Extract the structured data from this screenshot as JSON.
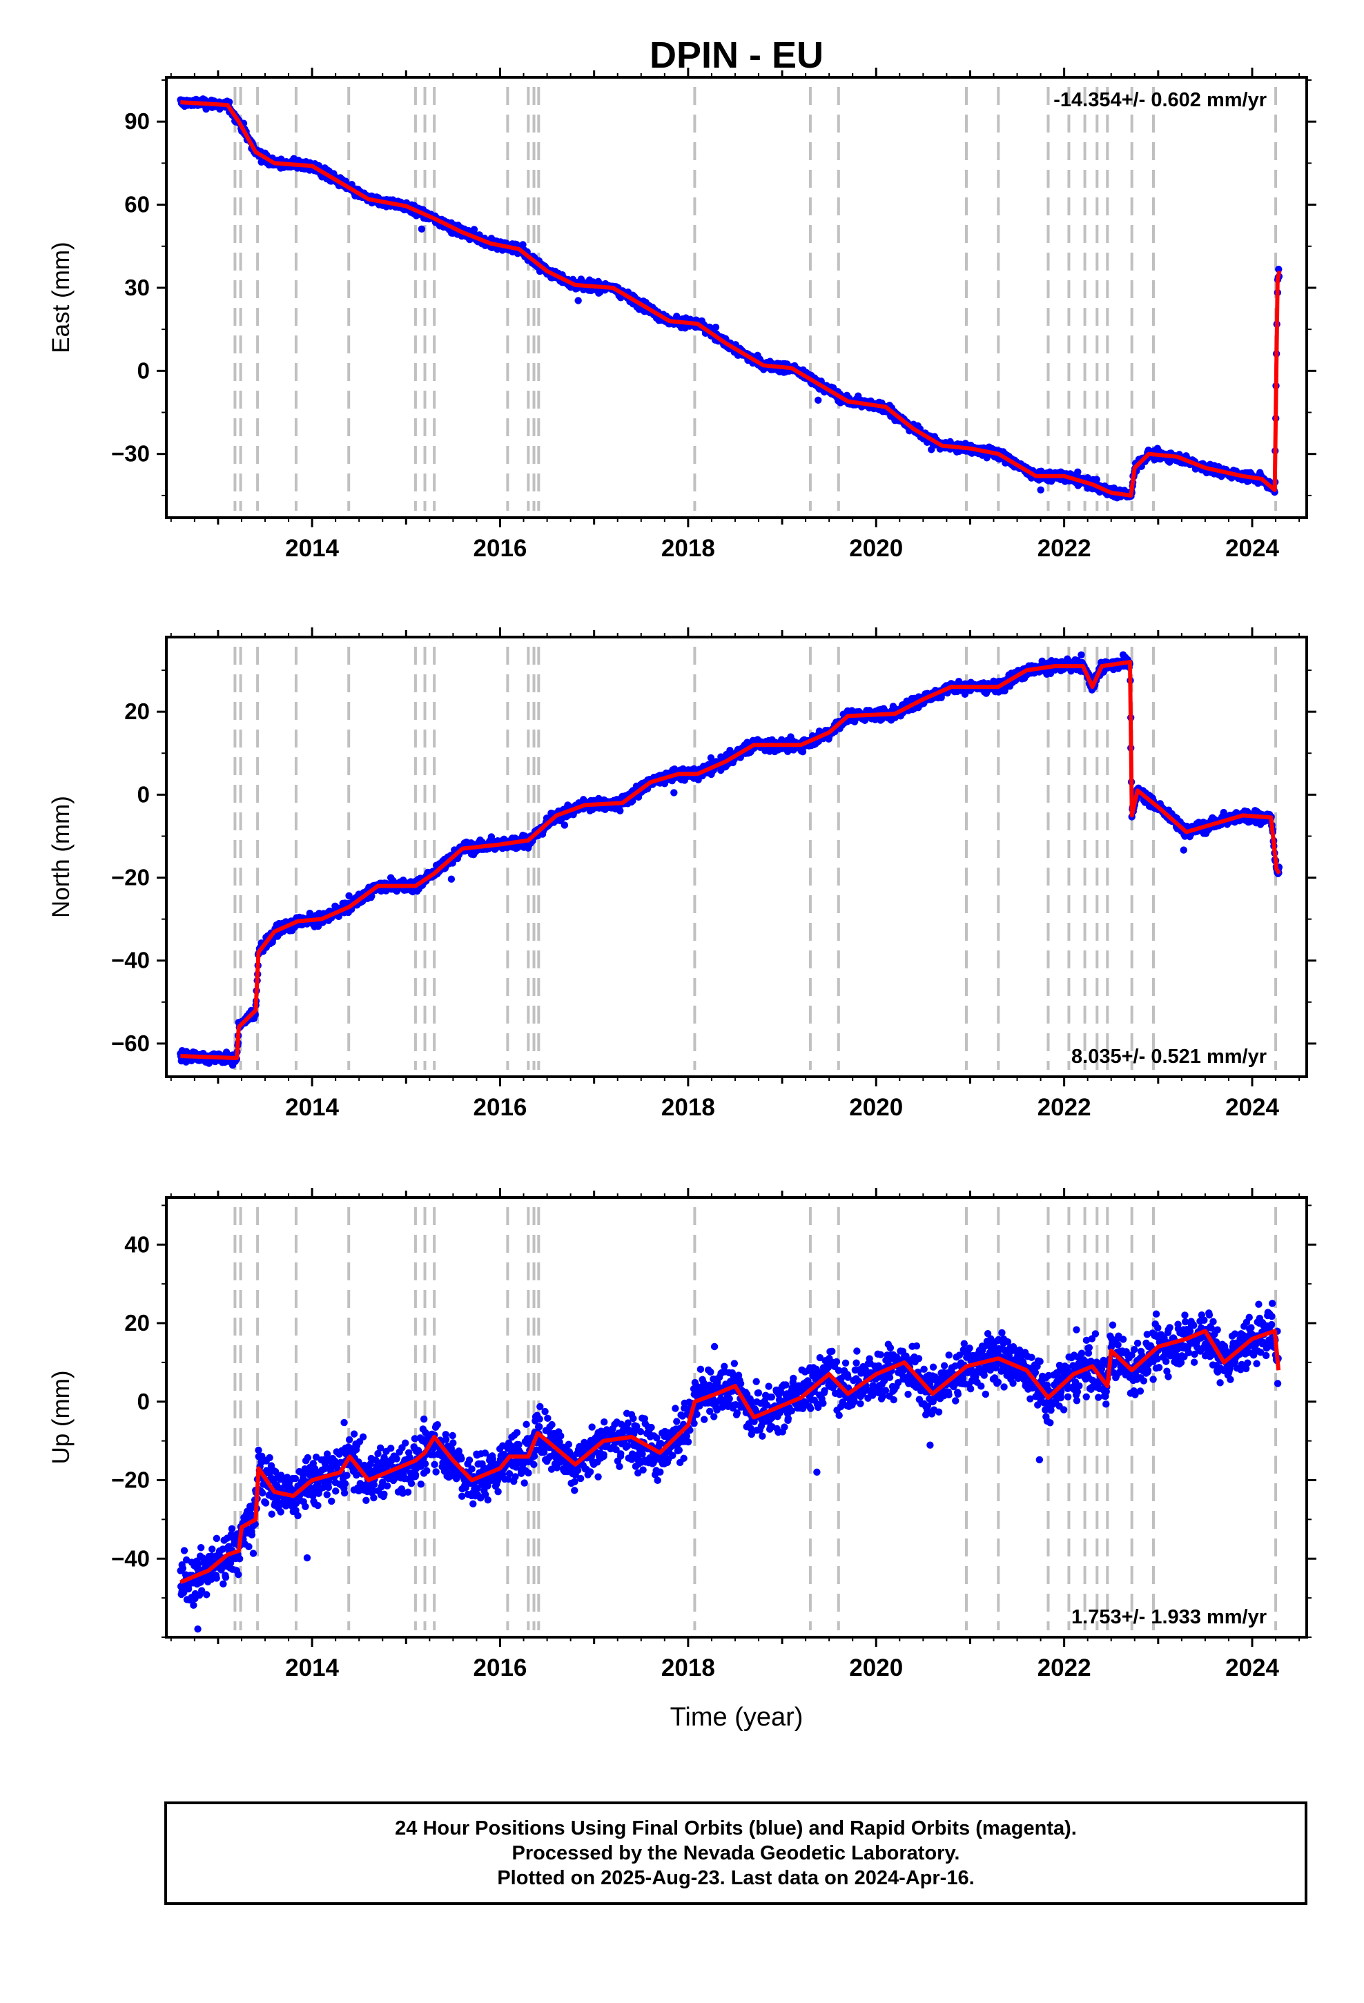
{
  "title": "DPIN - EU",
  "colors": {
    "data": "#0000ff",
    "model": "#ff0000",
    "event_lines": "#c0c0c0",
    "axis": "#000000"
  },
  "chart_data": [
    {
      "type": "scatter",
      "component": "east",
      "ylabel": "East (mm)",
      "xlabel": "",
      "xlim": [
        2012.45,
        2024.58
      ],
      "ylim": [
        -53,
        106
      ],
      "yticks": [
        -30,
        0,
        30,
        60,
        90
      ],
      "xticks": [
        2014,
        2016,
        2018,
        2020,
        2022,
        2024
      ],
      "rate_label": "-14.354+/- 0.602 mm/yr",
      "rate_position": "top-right",
      "series": [
        {
          "role": "data",
          "scatter": 1.2,
          "values": [
            [
              2012.6,
              97
            ],
            [
              2013.1,
              96
            ],
            [
              2013.22,
              90
            ],
            [
              2013.4,
              79
            ],
            [
              2013.6,
              75
            ],
            [
              2014.0,
              74
            ],
            [
              2014.3,
              68
            ],
            [
              2014.6,
              62
            ],
            [
              2015.0,
              59.5
            ],
            [
              2015.3,
              55
            ],
            [
              2015.6,
              50
            ],
            [
              2015.9,
              46
            ],
            [
              2016.2,
              44
            ],
            [
              2016.5,
              36
            ],
            [
              2016.8,
              31
            ],
            [
              2017.2,
              30
            ],
            [
              2017.5,
              24
            ],
            [
              2017.8,
              18
            ],
            [
              2018.1,
              17
            ],
            [
              2018.4,
              10
            ],
            [
              2018.8,
              2
            ],
            [
              2019.1,
              1
            ],
            [
              2019.4,
              -5
            ],
            [
              2019.7,
              -11
            ],
            [
              2020.1,
              -13
            ],
            [
              2020.4,
              -21
            ],
            [
              2020.7,
              -27
            ],
            [
              2021.0,
              -28
            ],
            [
              2021.3,
              -30
            ],
            [
              2021.7,
              -38
            ],
            [
              2022.0,
              -38
            ],
            [
              2022.3,
              -41
            ],
            [
              2022.5,
              -44
            ],
            [
              2022.71,
              -45
            ],
            [
              2022.75,
              -35
            ],
            [
              2022.9,
              -30
            ],
            [
              2023.2,
              -31
            ],
            [
              2023.5,
              -35
            ],
            [
              2023.9,
              -38
            ],
            [
              2024.1,
              -39
            ],
            [
              2024.24,
              -43
            ],
            [
              2024.27,
              33
            ],
            [
              2024.29,
              36
            ]
          ]
        }
      ],
      "event_years": [
        2013.18,
        2013.24,
        2013.42,
        2013.83,
        2014.39,
        2015.1,
        2015.2,
        2015.3,
        2016.08,
        2016.3,
        2016.36,
        2016.41,
        2018.07,
        2019.3,
        2019.6,
        2020.96,
        2021.3,
        2021.83,
        2022.05,
        2022.22,
        2022.35,
        2022.46,
        2022.72,
        2022.95,
        2024.25
      ]
    },
    {
      "type": "scatter",
      "component": "north",
      "ylabel": "North (mm)",
      "xlabel": "",
      "xlim": [
        2012.45,
        2024.58
      ],
      "ylim": [
        -68,
        38
      ],
      "yticks": [
        -60,
        -40,
        -20,
        0,
        20
      ],
      "xticks": [
        2014,
        2016,
        2018,
        2020,
        2022,
        2024
      ],
      "rate_label": "8.035+/- 0.521 mm/yr",
      "rate_position": "bottom-right",
      "series": [
        {
          "role": "data",
          "scatter": 1.0,
          "values": [
            [
              2012.6,
              -63
            ],
            [
              2013.2,
              -63.5
            ],
            [
              2013.22,
              -56
            ],
            [
              2013.4,
              -52
            ],
            [
              2013.43,
              -38
            ],
            [
              2013.6,
              -33
            ],
            [
              2013.85,
              -30.5
            ],
            [
              2014.1,
              -30
            ],
            [
              2014.4,
              -27
            ],
            [
              2014.7,
              -22
            ],
            [
              2015.1,
              -22
            ],
            [
              2015.3,
              -19
            ],
            [
              2015.6,
              -13
            ],
            [
              2016.0,
              -12
            ],
            [
              2016.3,
              -11
            ],
            [
              2016.6,
              -5
            ],
            [
              2016.9,
              -2.5
            ],
            [
              2017.3,
              -2
            ],
            [
              2017.6,
              3
            ],
            [
              2017.9,
              5
            ],
            [
              2018.1,
              5
            ],
            [
              2018.4,
              8
            ],
            [
              2018.7,
              12
            ],
            [
              2019.2,
              12
            ],
            [
              2019.5,
              15
            ],
            [
              2019.7,
              19
            ],
            [
              2020.2,
              19.5
            ],
            [
              2020.5,
              23
            ],
            [
              2020.8,
              26
            ],
            [
              2021.3,
              26
            ],
            [
              2021.6,
              30
            ],
            [
              2021.9,
              31
            ],
            [
              2022.2,
              31
            ],
            [
              2022.3,
              26
            ],
            [
              2022.4,
              31
            ],
            [
              2022.7,
              32
            ],
            [
              2022.72,
              -5
            ],
            [
              2022.78,
              1
            ],
            [
              2023.0,
              -3
            ],
            [
              2023.3,
              -9
            ],
            [
              2023.6,
              -7
            ],
            [
              2023.9,
              -5
            ],
            [
              2024.2,
              -5.5
            ],
            [
              2024.26,
              -18
            ],
            [
              2024.29,
              -19
            ]
          ]
        }
      ],
      "event_years": [
        2013.18,
        2013.24,
        2013.42,
        2013.83,
        2014.39,
        2015.1,
        2015.2,
        2015.3,
        2016.08,
        2016.3,
        2016.36,
        2016.41,
        2018.07,
        2019.3,
        2019.6,
        2020.96,
        2021.3,
        2021.83,
        2022.05,
        2022.22,
        2022.35,
        2022.46,
        2022.72,
        2022.95,
        2024.25
      ]
    },
    {
      "type": "scatter",
      "component": "up",
      "ylabel": "Up (mm)",
      "xlabel": "Time (year)",
      "xlim": [
        2012.45,
        2024.58
      ],
      "ylim": [
        -60,
        52
      ],
      "yticks": [
        -40,
        -20,
        0,
        20,
        40
      ],
      "xticks": [
        2014,
        2016,
        2018,
        2020,
        2022,
        2024
      ],
      "rate_label": "1.753+/- 1.933 mm/yr",
      "rate_position": "bottom-right",
      "series": [
        {
          "role": "data",
          "scatter": 4.5,
          "values": [
            [
              2012.6,
              -46
            ],
            [
              2012.9,
              -43
            ],
            [
              2013.1,
              -39
            ],
            [
              2013.22,
              -38
            ],
            [
              2013.25,
              -32
            ],
            [
              2013.4,
              -30
            ],
            [
              2013.43,
              -17
            ],
            [
              2013.6,
              -23
            ],
            [
              2013.8,
              -24
            ],
            [
              2014.0,
              -20
            ],
            [
              2014.3,
              -18
            ],
            [
              2014.4,
              -14
            ],
            [
              2014.6,
              -20
            ],
            [
              2014.9,
              -17
            ],
            [
              2015.1,
              -15
            ],
            [
              2015.2,
              -13
            ],
            [
              2015.3,
              -9
            ],
            [
              2015.5,
              -15
            ],
            [
              2015.7,
              -20
            ],
            [
              2016.0,
              -17
            ],
            [
              2016.1,
              -14
            ],
            [
              2016.3,
              -14
            ],
            [
              2016.4,
              -8
            ],
            [
              2016.6,
              -12
            ],
            [
              2016.8,
              -16
            ],
            [
              2017.1,
              -10
            ],
            [
              2017.4,
              -9
            ],
            [
              2017.7,
              -13
            ],
            [
              2018.0,
              -6
            ],
            [
              2018.07,
              0
            ],
            [
              2018.3,
              2
            ],
            [
              2018.5,
              4
            ],
            [
              2018.7,
              -4
            ],
            [
              2018.9,
              -2
            ],
            [
              2019.2,
              1
            ],
            [
              2019.5,
              7
            ],
            [
              2019.7,
              2
            ],
            [
              2020.0,
              7
            ],
            [
              2020.3,
              10
            ],
            [
              2020.6,
              2
            ],
            [
              2020.96,
              9
            ],
            [
              2021.3,
              11
            ],
            [
              2021.6,
              8
            ],
            [
              2021.83,
              1
            ],
            [
              2022.1,
              7
            ],
            [
              2022.3,
              9
            ],
            [
              2022.46,
              4
            ],
            [
              2022.5,
              13
            ],
            [
              2022.72,
              8
            ],
            [
              2023.0,
              14
            ],
            [
              2023.3,
              16
            ],
            [
              2023.5,
              18
            ],
            [
              2023.7,
              10
            ],
            [
              2024.0,
              16
            ],
            [
              2024.24,
              18
            ],
            [
              2024.28,
              8
            ]
          ]
        }
      ],
      "event_years": [
        2013.18,
        2013.24,
        2013.42,
        2013.83,
        2014.39,
        2015.1,
        2015.2,
        2015.3,
        2016.08,
        2016.3,
        2016.36,
        2016.41,
        2018.07,
        2019.3,
        2019.6,
        2020.96,
        2021.3,
        2021.83,
        2022.05,
        2022.22,
        2022.35,
        2022.46,
        2022.72,
        2022.95,
        2024.25
      ]
    }
  ],
  "footer": {
    "line1": "24 Hour Positions Using Final Orbits (blue) and Rapid Orbits (magenta).",
    "line2": "Processed by the Nevada Geodetic Laboratory.",
    "line3": "Plotted on 2025-Aug-23. Last data on 2024-Apr-16."
  }
}
